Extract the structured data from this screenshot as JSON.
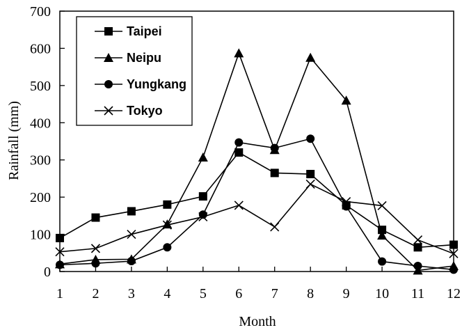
{
  "chart_data": {
    "type": "line",
    "xlabel": "Month",
    "ylabel": "Rainfall  (mm)",
    "x": [
      1,
      2,
      3,
      4,
      5,
      6,
      7,
      8,
      9,
      10,
      11,
      12
    ],
    "xlim": [
      1,
      12
    ],
    "ylim": [
      0,
      700
    ],
    "yticks": [
      0,
      100,
      200,
      300,
      400,
      500,
      600,
      700
    ],
    "grid": false,
    "legend_position": "top-left",
    "series": [
      {
        "name": "Taipei",
        "marker": "square",
        "values": [
          90,
          145,
          162,
          180,
          202,
          320,
          265,
          262,
          178,
          112,
          65,
          72
        ]
      },
      {
        "name": "Neipu",
        "marker": "triangle",
        "values": [
          20,
          32,
          33,
          127,
          307,
          587,
          327,
          575,
          460,
          97,
          3,
          15
        ]
      },
      {
        "name": "Yungkang",
        "marker": "circle",
        "values": [
          18,
          22,
          28,
          65,
          153,
          347,
          332,
          357,
          175,
          27,
          15,
          5
        ]
      },
      {
        "name": "Tokyo",
        "marker": "x",
        "values": [
          53,
          62,
          100,
          125,
          147,
          178,
          120,
          235,
          188,
          177,
          85,
          48
        ]
      }
    ]
  }
}
